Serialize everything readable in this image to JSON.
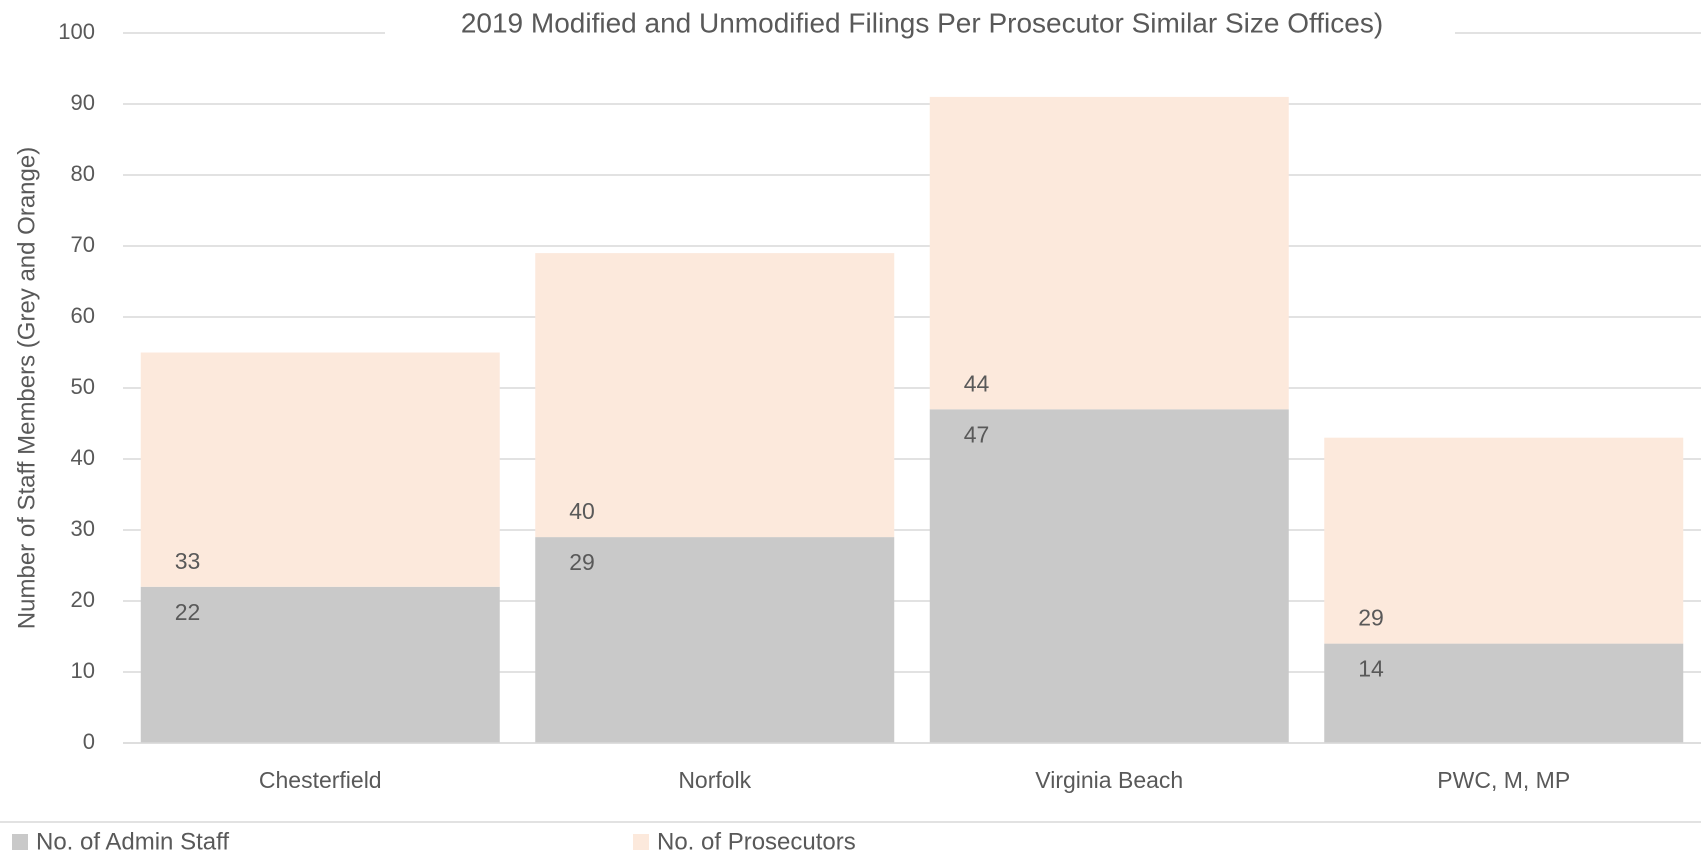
{
  "chart_data": {
    "type": "stacked_bar",
    "title": "2019 Modified and Unmodified Filings Per Prosecutor Similar Size Offices)",
    "y_label": "Number of Staff Members (Grey and Orange)",
    "categories": [
      "Chesterfield",
      "Norfolk",
      "Virginia Beach",
      "PWC, M, MP"
    ],
    "series": [
      {
        "name": "No. of Admin Staff",
        "color": "#c9c9c9",
        "values": [
          22,
          29,
          47,
          14
        ]
      },
      {
        "name": "No. of Prosecutors",
        "color": "#fce9dc",
        "values": [
          33,
          40,
          44,
          29
        ]
      }
    ],
    "ylim": [
      0,
      100
    ],
    "yticks": [
      0,
      10,
      20,
      30,
      40,
      50,
      60,
      70,
      80,
      90,
      100
    ],
    "grid": true,
    "legend": "bottom"
  }
}
